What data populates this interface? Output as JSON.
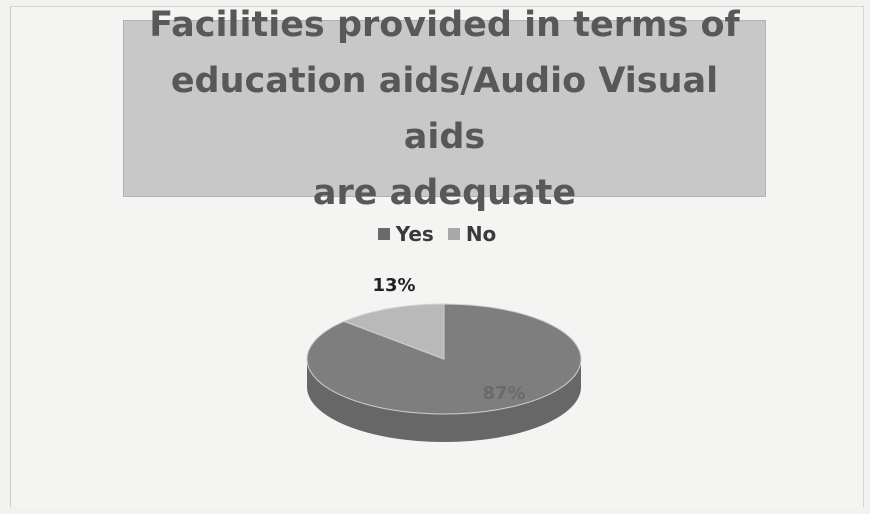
{
  "chart_data": {
    "type": "pie",
    "title": "Facilities provided in terms of education aids/Audio Visual aids are adequate",
    "title_lines": [
      "Facilities provided in terms of",
      "education aids/Audio Visual aids",
      "are adequate"
    ],
    "categories": [
      "Yes",
      "No"
    ],
    "values": [
      87,
      13
    ],
    "labels": [
      "87%",
      "13%"
    ],
    "colors": [
      "#7e7e7e",
      "#b9b9b9"
    ],
    "legend_position": "top"
  }
}
